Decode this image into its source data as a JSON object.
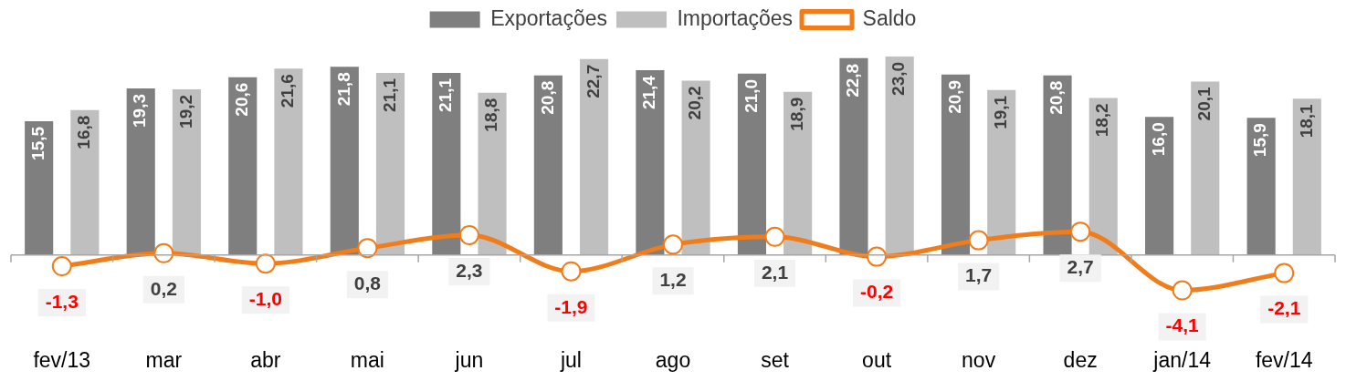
{
  "chart_data": {
    "type": "bar",
    "categories": [
      "fev/13",
      "mar",
      "abr",
      "mai",
      "jun",
      "jul",
      "ago",
      "set",
      "out",
      "nov",
      "dez",
      "jan/14",
      "fev/14"
    ],
    "series": [
      {
        "name": "Exportações",
        "color": "#7f7f7f",
        "values": [
          15.5,
          19.3,
          20.6,
          21.8,
          21.1,
          20.8,
          21.4,
          21.0,
          22.8,
          20.9,
          20.8,
          16.0,
          15.9
        ],
        "value_labels": [
          "15,5",
          "19,3",
          "20,6",
          "21,8",
          "21,1",
          "20,8",
          "21,4",
          "21,0",
          "22,8",
          "20,9",
          "20,8",
          "16,0",
          "15,9"
        ]
      },
      {
        "name": "Importações",
        "color": "#bfbfbf",
        "values": [
          16.8,
          19.2,
          21.6,
          21.1,
          18.8,
          22.7,
          20.2,
          18.9,
          23.0,
          19.1,
          18.2,
          20.1,
          18.1
        ],
        "value_labels": [
          "16,8",
          "19,2",
          "21,6",
          "21,1",
          "18,8",
          "22,7",
          "20,2",
          "18,9",
          "23,0",
          "19,1",
          "18,2",
          "20,1",
          "18,1"
        ]
      },
      {
        "name": "Saldo",
        "type": "line",
        "color": "#f07d1a",
        "marker": "circle",
        "values": [
          -1.3,
          0.2,
          -1.0,
          0.8,
          2.3,
          -1.9,
          1.2,
          2.1,
          -0.2,
          1.7,
          2.7,
          -4.1,
          -2.1
        ],
        "value_labels": [
          "-1,3",
          "0,2",
          "-1,0",
          "0,8",
          "2,3",
          "-1,9",
          "1,2",
          "2,1",
          "-0,2",
          "1,7",
          "2,7",
          "-4,1",
          "-2,1"
        ]
      }
    ],
    "tick_labels": "x",
    "grid": false,
    "legend": "top"
  }
}
